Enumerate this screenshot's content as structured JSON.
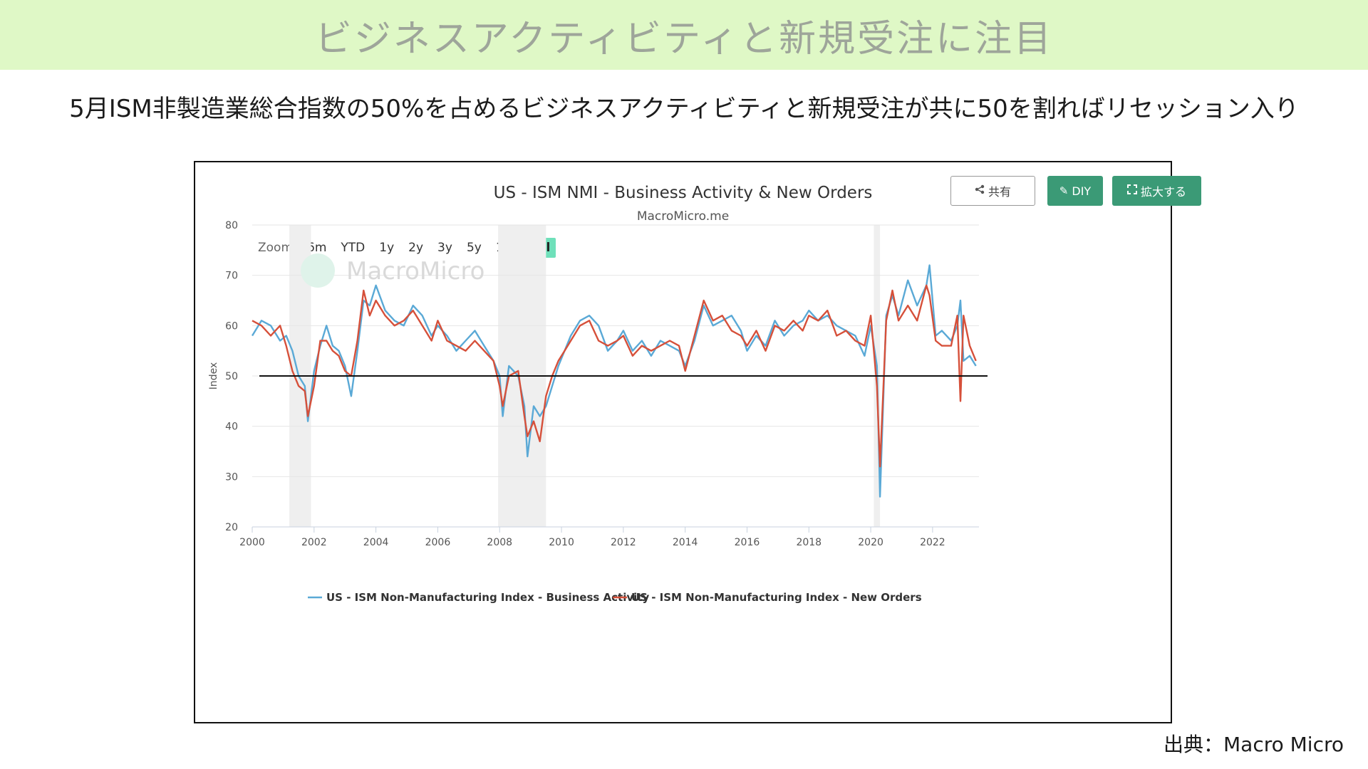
{
  "banner": {
    "title": "ビジネスアクティビティと新規受注に注目"
  },
  "subtitle": "5月ISM非製造業総合指数の50%を占めるビジネスアクティビティと新規受注が共に50を割ればリセッション入り",
  "toolbar": {
    "share_label": "共有",
    "diy_label": "DIY",
    "expand_label": "拡大する",
    "share_icon": "share-icon",
    "diy_icon": "pencil-icon",
    "expand_icon": "expand-icon"
  },
  "zoom": {
    "label": "Zoom",
    "options": [
      "6m",
      "YTD",
      "1y",
      "2y",
      "3y",
      "5y",
      "10y",
      "All"
    ],
    "selected": "All"
  },
  "watermark": "MacroMicro",
  "source": "出典：Macro Micro",
  "colors": {
    "business_activity": "#5aa9d6",
    "new_orders": "#d6503a",
    "recession_band": "#efefef",
    "reference_line": "#111111",
    "accent": "#3b9a76"
  },
  "chart_data": {
    "type": "line",
    "title": "US - ISM NMI - Business Activity & New Orders",
    "subtitle": "MacroMicro.me",
    "xlabel": "",
    "ylabel": "Index",
    "xlim": [
      2000,
      2023.5
    ],
    "ylim": [
      20,
      80
    ],
    "xticks": [
      2000,
      2002,
      2004,
      2006,
      2008,
      2010,
      2012,
      2014,
      2016,
      2018,
      2020,
      2022
    ],
    "yticks": [
      20,
      30,
      40,
      50,
      60,
      70,
      80
    ],
    "reference_line": 50,
    "recession_bands": [
      [
        2001.2,
        2001.9
      ],
      [
        2007.95,
        2009.5
      ],
      [
        2020.1,
        2020.3
      ]
    ],
    "legend_position": "bottom",
    "grid": true,
    "series": [
      {
        "name": "US - ISM Non-Manufacturing Index - Business Activity",
        "color": "#5aa9d6",
        "points": [
          [
            2000.0,
            58
          ],
          [
            2000.3,
            61
          ],
          [
            2000.6,
            60
          ],
          [
            2000.9,
            57
          ],
          [
            2001.1,
            58
          ],
          [
            2001.3,
            55
          ],
          [
            2001.5,
            50
          ],
          [
            2001.7,
            48
          ],
          [
            2001.8,
            41
          ],
          [
            2002.0,
            51
          ],
          [
            2002.2,
            56
          ],
          [
            2002.4,
            60
          ],
          [
            2002.6,
            56
          ],
          [
            2002.8,
            55
          ],
          [
            2003.0,
            52
          ],
          [
            2003.2,
            46
          ],
          [
            2003.4,
            55
          ],
          [
            2003.6,
            65
          ],
          [
            2003.8,
            64
          ],
          [
            2004.0,
            68
          ],
          [
            2004.3,
            63
          ],
          [
            2004.6,
            61
          ],
          [
            2004.9,
            60
          ],
          [
            2005.2,
            64
          ],
          [
            2005.5,
            62
          ],
          [
            2005.8,
            58
          ],
          [
            2006.0,
            60
          ],
          [
            2006.3,
            58
          ],
          [
            2006.6,
            55
          ],
          [
            2006.9,
            57
          ],
          [
            2007.2,
            59
          ],
          [
            2007.5,
            56
          ],
          [
            2007.8,
            53
          ],
          [
            2008.0,
            50
          ],
          [
            2008.1,
            42
          ],
          [
            2008.3,
            52
          ],
          [
            2008.6,
            50
          ],
          [
            2008.8,
            44
          ],
          [
            2008.9,
            34
          ],
          [
            2009.1,
            44
          ],
          [
            2009.3,
            42
          ],
          [
            2009.5,
            44
          ],
          [
            2009.7,
            48
          ],
          [
            2009.9,
            52
          ],
          [
            2010.1,
            55
          ],
          [
            2010.3,
            58
          ],
          [
            2010.6,
            61
          ],
          [
            2010.9,
            62
          ],
          [
            2011.2,
            60
          ],
          [
            2011.5,
            55
          ],
          [
            2011.8,
            57
          ],
          [
            2012.0,
            59
          ],
          [
            2012.3,
            55
          ],
          [
            2012.6,
            57
          ],
          [
            2012.9,
            54
          ],
          [
            2013.2,
            57
          ],
          [
            2013.5,
            56
          ],
          [
            2013.8,
            55
          ],
          [
            2014.0,
            52
          ],
          [
            2014.3,
            57
          ],
          [
            2014.6,
            64
          ],
          [
            2014.9,
            60
          ],
          [
            2015.2,
            61
          ],
          [
            2015.5,
            62
          ],
          [
            2015.8,
            59
          ],
          [
            2016.0,
            55
          ],
          [
            2016.3,
            58
          ],
          [
            2016.6,
            56
          ],
          [
            2016.9,
            61
          ],
          [
            2017.2,
            58
          ],
          [
            2017.5,
            60
          ],
          [
            2017.8,
            61
          ],
          [
            2018.0,
            63
          ],
          [
            2018.3,
            61
          ],
          [
            2018.6,
            62
          ],
          [
            2018.9,
            60
          ],
          [
            2019.2,
            59
          ],
          [
            2019.5,
            58
          ],
          [
            2019.8,
            54
          ],
          [
            2020.0,
            60
          ],
          [
            2020.2,
            52
          ],
          [
            2020.3,
            26
          ],
          [
            2020.5,
            62
          ],
          [
            2020.7,
            66
          ],
          [
            2020.9,
            62
          ],
          [
            2021.2,
            69
          ],
          [
            2021.5,
            64
          ],
          [
            2021.8,
            68
          ],
          [
            2021.9,
            72
          ],
          [
            2022.1,
            58
          ],
          [
            2022.3,
            59
          ],
          [
            2022.6,
            57
          ],
          [
            2022.8,
            60
          ],
          [
            2022.9,
            65
          ],
          [
            2023.0,
            53
          ],
          [
            2023.2,
            54
          ],
          [
            2023.4,
            52
          ]
        ]
      },
      {
        "name": "US - ISM Non-Manufacturing Index - New Orders",
        "color": "#d6503a",
        "points": [
          [
            2000.0,
            61
          ],
          [
            2000.3,
            60
          ],
          [
            2000.6,
            58
          ],
          [
            2000.9,
            60
          ],
          [
            2001.1,
            56
          ],
          [
            2001.3,
            51
          ],
          [
            2001.5,
            48
          ],
          [
            2001.7,
            47
          ],
          [
            2001.8,
            42
          ],
          [
            2002.0,
            48
          ],
          [
            2002.2,
            57
          ],
          [
            2002.4,
            57
          ],
          [
            2002.6,
            55
          ],
          [
            2002.8,
            54
          ],
          [
            2003.0,
            51
          ],
          [
            2003.2,
            50
          ],
          [
            2003.4,
            57
          ],
          [
            2003.6,
            67
          ],
          [
            2003.8,
            62
          ],
          [
            2004.0,
            65
          ],
          [
            2004.3,
            62
          ],
          [
            2004.6,
            60
          ],
          [
            2004.9,
            61
          ],
          [
            2005.2,
            63
          ],
          [
            2005.5,
            60
          ],
          [
            2005.8,
            57
          ],
          [
            2006.0,
            61
          ],
          [
            2006.3,
            57
          ],
          [
            2006.6,
            56
          ],
          [
            2006.9,
            55
          ],
          [
            2007.2,
            57
          ],
          [
            2007.5,
            55
          ],
          [
            2007.8,
            53
          ],
          [
            2008.0,
            48
          ],
          [
            2008.1,
            44
          ],
          [
            2008.3,
            50
          ],
          [
            2008.6,
            51
          ],
          [
            2008.8,
            42
          ],
          [
            2008.9,
            38
          ],
          [
            2009.1,
            41
          ],
          [
            2009.3,
            37
          ],
          [
            2009.5,
            46
          ],
          [
            2009.7,
            50
          ],
          [
            2009.9,
            53
          ],
          [
            2010.1,
            55
          ],
          [
            2010.3,
            57
          ],
          [
            2010.6,
            60
          ],
          [
            2010.9,
            61
          ],
          [
            2011.2,
            57
          ],
          [
            2011.5,
            56
          ],
          [
            2011.8,
            57
          ],
          [
            2012.0,
            58
          ],
          [
            2012.3,
            54
          ],
          [
            2012.6,
            56
          ],
          [
            2012.9,
            55
          ],
          [
            2013.2,
            56
          ],
          [
            2013.5,
            57
          ],
          [
            2013.8,
            56
          ],
          [
            2014.0,
            51
          ],
          [
            2014.3,
            58
          ],
          [
            2014.6,
            65
          ],
          [
            2014.9,
            61
          ],
          [
            2015.2,
            62
          ],
          [
            2015.5,
            59
          ],
          [
            2015.8,
            58
          ],
          [
            2016.0,
            56
          ],
          [
            2016.3,
            59
          ],
          [
            2016.6,
            55
          ],
          [
            2016.9,
            60
          ],
          [
            2017.2,
            59
          ],
          [
            2017.5,
            61
          ],
          [
            2017.8,
            59
          ],
          [
            2018.0,
            62
          ],
          [
            2018.3,
            61
          ],
          [
            2018.6,
            63
          ],
          [
            2018.9,
            58
          ],
          [
            2019.2,
            59
          ],
          [
            2019.5,
            57
          ],
          [
            2019.8,
            56
          ],
          [
            2020.0,
            62
          ],
          [
            2020.2,
            48
          ],
          [
            2020.3,
            32
          ],
          [
            2020.5,
            61
          ],
          [
            2020.7,
            67
          ],
          [
            2020.9,
            61
          ],
          [
            2021.2,
            64
          ],
          [
            2021.5,
            61
          ],
          [
            2021.8,
            68
          ],
          [
            2021.9,
            66
          ],
          [
            2022.1,
            57
          ],
          [
            2022.3,
            56
          ],
          [
            2022.6,
            56
          ],
          [
            2022.8,
            62
          ],
          [
            2022.9,
            45
          ],
          [
            2023.0,
            62
          ],
          [
            2023.2,
            56
          ],
          [
            2023.4,
            53
          ]
        ]
      }
    ]
  }
}
